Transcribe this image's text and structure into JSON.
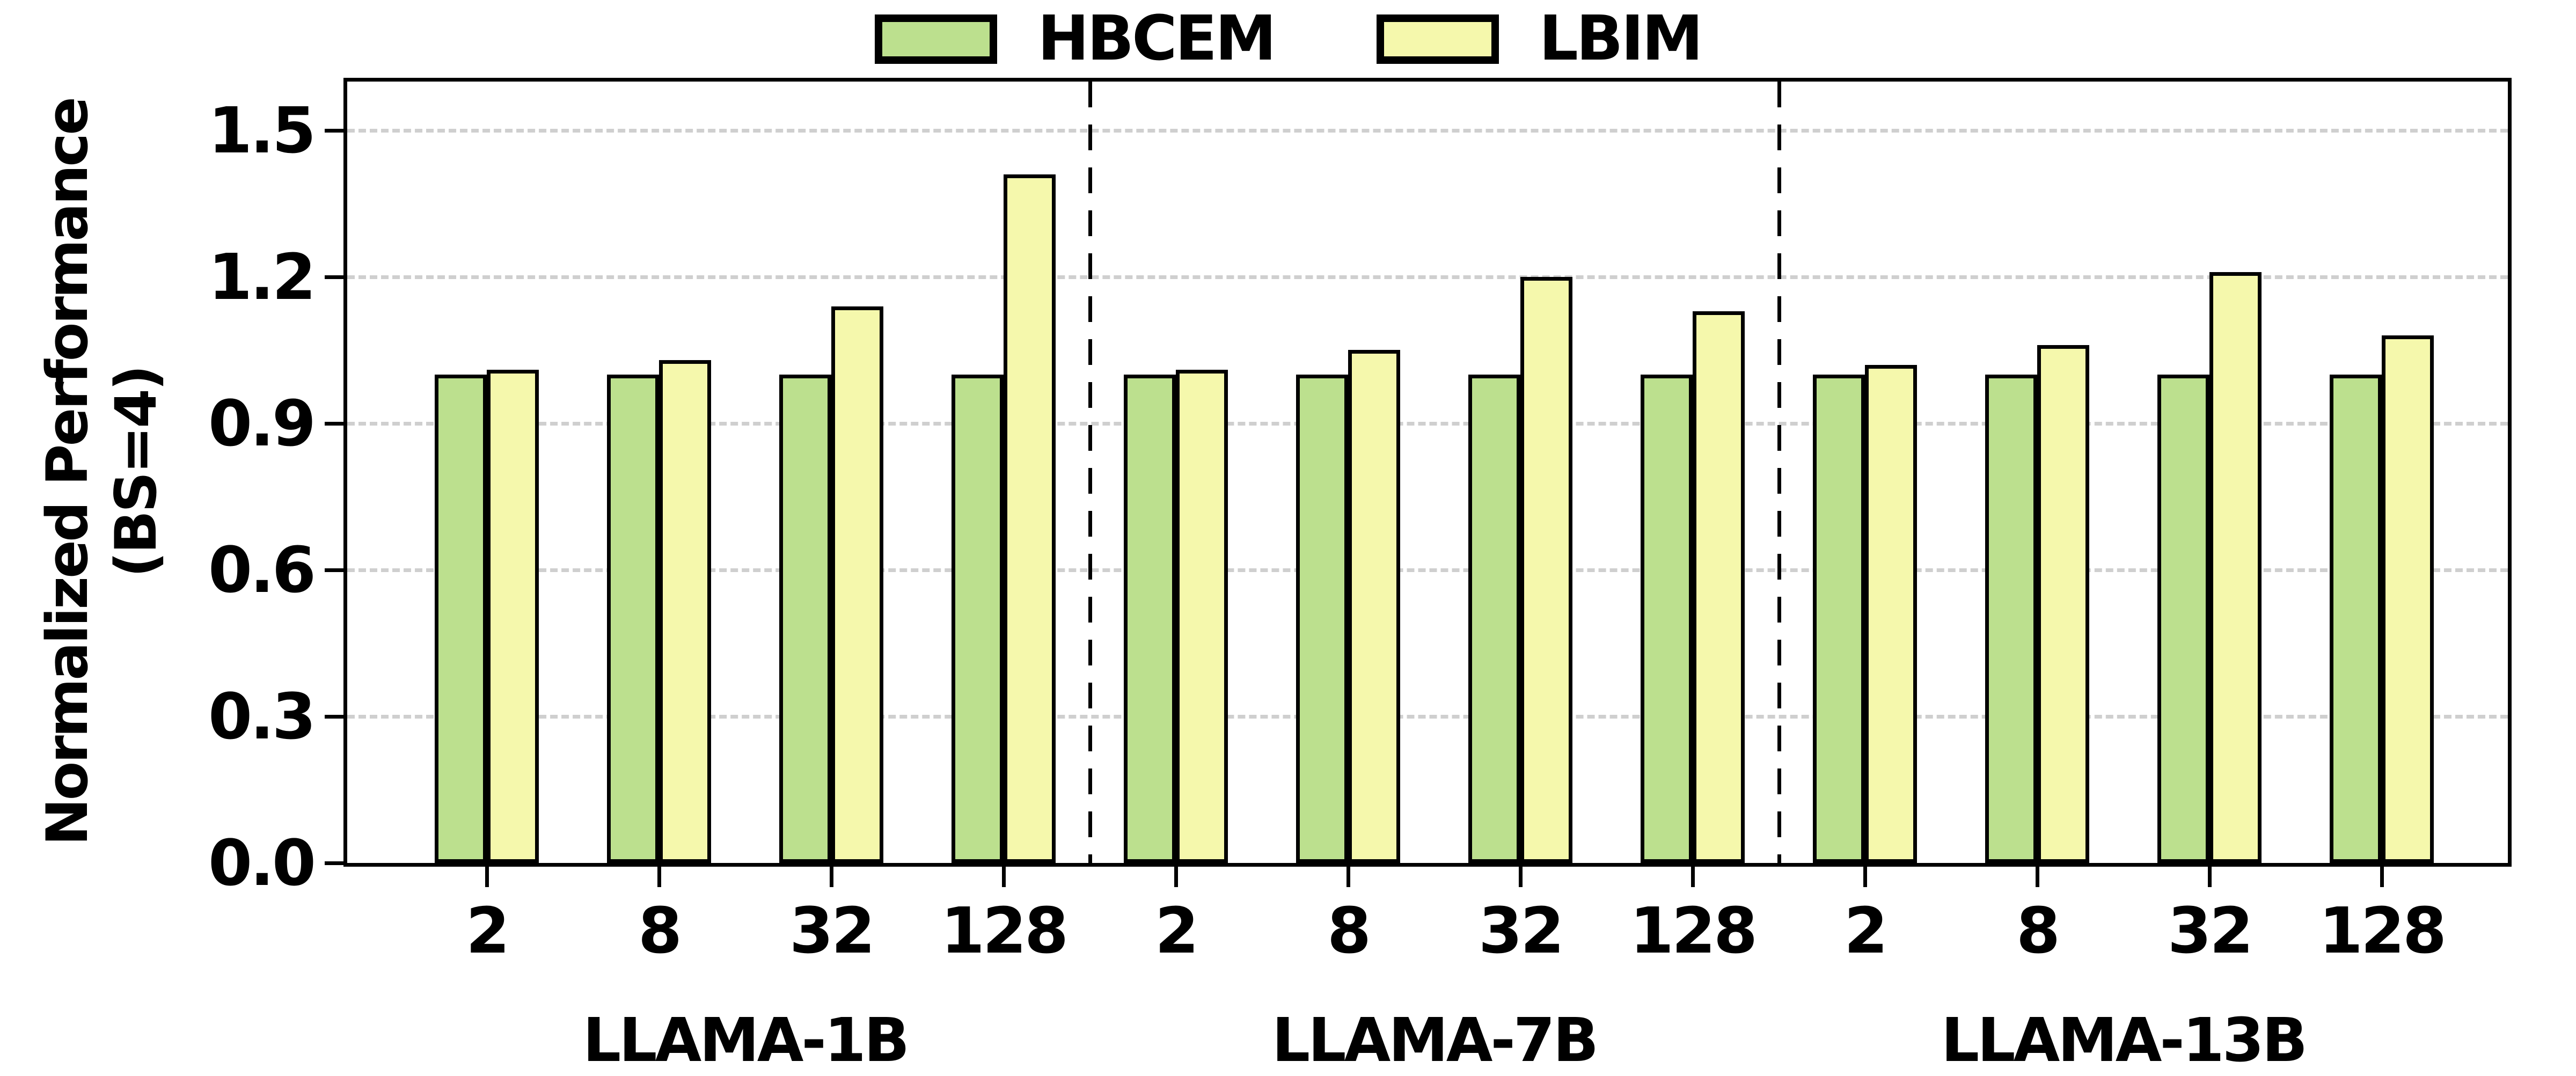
{
  "y_axis": {
    "label_line1": "Normalized Performance",
    "label_line2": "(BS=4)",
    "tick_labels": [
      "0.0",
      "0.3",
      "0.6",
      "0.9",
      "1.2",
      "1.5"
    ]
  },
  "legend": {
    "items": [
      {
        "label": "HBCEM",
        "color": "#bce08e"
      },
      {
        "label": "LBIM",
        "color": "#f5f8ac"
      }
    ]
  },
  "chart_data": {
    "type": "bar",
    "title": "",
    "xlabel": "",
    "ylabel": "Normalized Performance (BS=4)",
    "ylim": [
      0,
      1.6
    ],
    "yticks": [
      0.0,
      0.3,
      0.6,
      0.9,
      1.2,
      1.5
    ],
    "ytick_labels": [
      "0.0",
      "0.3",
      "0.6",
      "0.9",
      "1.2",
      "1.5"
    ],
    "grid": "horizontal-dashed",
    "legend_position": "top-center",
    "categories": [
      "2",
      "8",
      "32",
      "128"
    ],
    "groups": [
      {
        "label": "LLAMA-1B",
        "categories": [
          "2",
          "8",
          "32",
          "128"
        ],
        "series": [
          {
            "name": "HBCEM",
            "values": [
              1.0,
              1.0,
              1.0,
              1.0
            ]
          },
          {
            "name": "LBIM",
            "values": [
              1.01,
              1.03,
              1.14,
              1.41
            ]
          }
        ]
      },
      {
        "label": "LLAMA-7B",
        "categories": [
          "2",
          "8",
          "32",
          "128"
        ],
        "series": [
          {
            "name": "HBCEM",
            "values": [
              1.0,
              1.0,
              1.0,
              1.0
            ]
          },
          {
            "name": "LBIM",
            "values": [
              1.01,
              1.05,
              1.2,
              1.13
            ]
          }
        ]
      },
      {
        "label": "LLAMA-13B",
        "categories": [
          "2",
          "8",
          "32",
          "128"
        ],
        "series": [
          {
            "name": "HBCEM",
            "values": [
              1.0,
              1.0,
              1.0,
              1.0
            ]
          },
          {
            "name": "LBIM",
            "values": [
              1.02,
              1.06,
              1.21,
              1.08
            ]
          }
        ]
      }
    ],
    "colors": {
      "HBCEM": "#bce08e",
      "LBIM": "#f5f8ac",
      "bar_edge": "#000000",
      "grid": "#cfcfcf",
      "separator": "#000000"
    },
    "separators": "dashed-vertical-between-groups"
  }
}
